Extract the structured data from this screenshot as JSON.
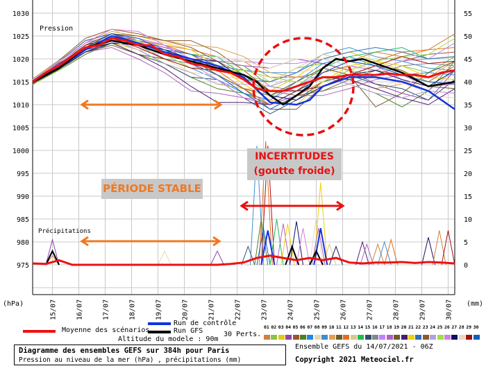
{
  "chart_data": {
    "type": "line",
    "title": "Diagramme des ensembles GEFS sur 384h pour Paris",
    "subtitle": "Pression au niveau de la mer (hPa) , précipitations (mm)",
    "run_info": "Ensemble GEFS du 14/07/2021 - 06Z",
    "copyright": "Copyright 2021 Meteociel.fr",
    "altitude": "Altitude du modele : 90m",
    "left_axis_unit": "(hPa)",
    "right_axis_unit": "(mm)",
    "pressure_label": "Pression",
    "precip_label": "Précipitations",
    "ylim_hpa": [
      975,
      1030
    ],
    "ylim_mm": [
      0,
      55
    ],
    "left_ticks": [
      "1030",
      "1025",
      "1020",
      "1015",
      "1010",
      "1005",
      "1000",
      "995",
      "990",
      "985",
      "980",
      "975"
    ],
    "right_ticks": [
      "55",
      "50",
      "45",
      "40",
      "35",
      "30",
      "25",
      "20",
      "15",
      "10",
      "5",
      "0"
    ],
    "x_hours_range": [
      0,
      384
    ],
    "date_ticks": [
      "15/07",
      "16/07",
      "17/07",
      "18/07",
      "19/07",
      "20/07",
      "21/07",
      "22/07",
      "23/07",
      "24/07",
      "25/07",
      "26/07",
      "27/07",
      "28/07",
      "29/07",
      "30/07"
    ],
    "legend": {
      "mean": "Moyenne des scénarios",
      "control": "Run de contrôle",
      "gfs": "Run GFS",
      "perts": "30 Perts.",
      "member_ids": [
        "01",
        "02",
        "03",
        "04",
        "05",
        "06",
        "07",
        "08",
        "09",
        "10",
        "11",
        "12",
        "13",
        "14",
        "15",
        "16",
        "17",
        "18",
        "19",
        "20",
        "21",
        "22",
        "23",
        "24",
        "25",
        "26",
        "27",
        "28",
        "29",
        "30"
      ]
    },
    "colors": {
      "mean": "#ee1111",
      "control": "#1133dd",
      "gfs": "#000000",
      "members": [
        "#d2803a",
        "#8bc34a",
        "#e6c619",
        "#8e44ad",
        "#a0522d",
        "#4f7f1f",
        "#1e88e5",
        "#e8d7b0",
        "#3f8fd0",
        "#e0a050",
        "#6b5b2b",
        "#e86c1a",
        "#d8c890",
        "#22bb55",
        "#2f4f6f",
        "#808890",
        "#c080ff",
        "#b060c0",
        "#6e5a2a",
        "#4b1d6e",
        "#f0d000",
        "#2e6fbf",
        "#8b5a2b",
        "#b0a0e0",
        "#a0e040",
        "#d080e0",
        "#101060",
        "#e8d8c0",
        "#a01010",
        "#1060c0"
      ]
    },
    "mean_hours_step": 12,
    "mean_pressure": [
      1015,
      1017,
      1018.5,
      1020.5,
      1022.5,
      1023,
      1024.5,
      1024,
      1023,
      1023,
      1021,
      1020.5,
      1019,
      1018.5,
      1017.5,
      1017,
      1015.5,
      1013.5,
      1013,
      1013,
      1014,
      1015,
      1016,
      1016,
      1016.5,
      1016.5,
      1016.5,
      1016.8,
      1016.5,
      1016.5,
      1016,
      1017,
      1017.5
    ],
    "mean_precip": [
      0.3,
      0.2,
      1,
      0,
      0,
      0,
      0,
      0,
      0,
      0,
      0,
      0,
      0,
      0,
      0,
      0.2,
      0.5,
      1.5,
      2,
      1.5,
      1,
      1.5,
      1,
      1.5,
      0.5,
      0.3,
      0.5,
      0.5,
      0.6,
      0.4,
      0.6,
      0.5,
      0.3
    ],
    "control_pressure": [
      [
        0,
        1015
      ],
      [
        24,
        1018
      ],
      [
        48,
        1022
      ],
      [
        72,
        1025
      ],
      [
        96,
        1023.5
      ],
      [
        120,
        1021.5
      ],
      [
        144,
        1020
      ],
      [
        168,
        1018.5
      ],
      [
        192,
        1016
      ],
      [
        216,
        1010.5
      ],
      [
        240,
        1010
      ],
      [
        252,
        1011
      ],
      [
        264,
        1014
      ],
      [
        288,
        1016
      ],
      [
        312,
        1016
      ],
      [
        336,
        1015
      ],
      [
        360,
        1013
      ],
      [
        384,
        1009
      ]
    ],
    "gfs_pressure": [
      [
        0,
        1015
      ],
      [
        24,
        1018
      ],
      [
        48,
        1022.5
      ],
      [
        72,
        1024
      ],
      [
        96,
        1023
      ],
      [
        120,
        1021
      ],
      [
        144,
        1019.5
      ],
      [
        168,
        1018
      ],
      [
        192,
        1016.5
      ],
      [
        204,
        1015
      ],
      [
        216,
        1012
      ],
      [
        228,
        1010
      ],
      [
        240,
        1012
      ],
      [
        252,
        1014
      ],
      [
        264,
        1018
      ],
      [
        276,
        1020
      ],
      [
        288,
        1019.5
      ],
      [
        300,
        1020
      ],
      [
        312,
        1019
      ],
      [
        336,
        1017
      ],
      [
        360,
        1014
      ],
      [
        384,
        1015
      ]
    ],
    "control_precip": [
      [
        18,
        3
      ],
      [
        214,
        7.5
      ],
      [
        262,
        8
      ]
    ],
    "gfs_precip": [
      [
        18,
        3
      ],
      [
        236,
        4
      ],
      [
        258,
        3
      ]
    ],
    "members_hours_step": 24,
    "member_pressure_offsets": [
      [
        0.5,
        1,
        1.5,
        1,
        1.5,
        2,
        3,
        3,
        4,
        3,
        2,
        1,
        3,
        5,
        4,
        6,
        8
      ],
      [
        -0.5,
        0,
        1,
        0.5,
        0,
        -1,
        -1,
        0,
        1,
        2,
        4,
        3,
        1,
        0,
        2,
        1,
        3
      ],
      [
        0,
        0.5,
        -0.5,
        -1,
        -1,
        -2,
        -2,
        -3,
        -2,
        0,
        2,
        4,
        5,
        3,
        1,
        -1,
        -3
      ],
      [
        0.3,
        -0.5,
        0,
        1,
        1,
        1.5,
        2,
        2,
        3,
        5,
        6,
        3,
        1,
        -2,
        -4,
        -5,
        0
      ],
      [
        0.6,
        1.2,
        2,
        2,
        2.5,
        3,
        3.5,
        2,
        1,
        0,
        -1,
        1,
        2,
        1,
        3,
        5,
        4
      ],
      [
        -0.3,
        -1,
        -1.5,
        -1,
        -2,
        -2,
        -3,
        -4,
        -3,
        -3,
        -1,
        0,
        -2,
        -4,
        -7,
        -3,
        2
      ],
      [
        0.2,
        0,
        0.5,
        0,
        1,
        0,
        -1,
        -2,
        -3,
        -2,
        1,
        3,
        4,
        2,
        0,
        1,
        -1
      ],
      [
        -0.6,
        -1,
        -1,
        0.5,
        0,
        -1,
        -2,
        -1,
        0,
        1,
        3,
        2,
        -1,
        -3,
        -1,
        -4,
        -6
      ],
      [
        0.4,
        0.8,
        0,
        -0.5,
        -1,
        0,
        1,
        1,
        2,
        4,
        3,
        5,
        6,
        4,
        3,
        2,
        0
      ],
      [
        0,
        0.3,
        1,
        1.5,
        2,
        3,
        4,
        5,
        5,
        4,
        2,
        0,
        -1,
        -3,
        -2,
        0,
        2
      ],
      [
        -0.4,
        -0.8,
        -1,
        -1.5,
        -2,
        -1,
        0,
        -1,
        -2,
        -4,
        -5,
        -2,
        0,
        2,
        1,
        -2,
        -4
      ],
      [
        0.7,
        0.5,
        0,
        0.5,
        1,
        2,
        2,
        0,
        -2,
        -3,
        -2,
        -1,
        1,
        3,
        5,
        6,
        5
      ],
      [
        -0.2,
        0.6,
        1,
        2,
        1,
        0,
        -1,
        1,
        3,
        2,
        4,
        5,
        3,
        1,
        -1,
        -3,
        -5
      ],
      [
        0.1,
        -0.3,
        -0.5,
        0,
        0.5,
        1,
        2,
        3,
        1,
        -1,
        0,
        2,
        4,
        5,
        6,
        4,
        3
      ],
      [
        -0.7,
        -0.5,
        -1,
        -0.5,
        -1,
        -2,
        -3,
        -2,
        -4,
        -5,
        -3,
        -1,
        0,
        -2,
        -3,
        -5,
        -2
      ],
      [
        0.3,
        0,
        0.5,
        1,
        0,
        -1,
        0,
        2,
        3,
        1,
        -1,
        -3,
        -2,
        0,
        2,
        3,
        1
      ],
      [
        -0.1,
        0.4,
        1,
        0.5,
        1.5,
        2,
        1,
        2,
        4,
        6,
        5,
        4,
        2,
        1,
        3,
        4,
        6
      ],
      [
        0.5,
        -0.2,
        -1,
        -2,
        -3,
        -4,
        -6,
        -5,
        -4,
        -3,
        -2,
        -4,
        -3,
        -1,
        0,
        -2,
        -3
      ],
      [
        -0.5,
        0.2,
        0.5,
        1,
        0,
        1,
        1,
        -1,
        -2,
        -1,
        1,
        2,
        0,
        -7,
        -4,
        1,
        2
      ],
      [
        0.2,
        0.5,
        -0.5,
        -1,
        -2,
        -3,
        -5,
        -7,
        -5,
        -3,
        -1,
        0,
        -1,
        -3,
        -5,
        -6,
        -4
      ],
      [
        0,
        -0.6,
        0,
        1,
        2,
        2.5,
        3,
        1,
        -1,
        -2,
        -4,
        -1,
        2,
        3,
        2,
        0,
        -2
      ],
      [
        0.6,
        0.9,
        1.5,
        1,
        0.5,
        1,
        2,
        1,
        0,
        2,
        3,
        4,
        5,
        6,
        5,
        4,
        3
      ],
      [
        -0.3,
        0,
        0.5,
        1,
        2,
        3,
        5,
        4,
        2,
        0,
        -2,
        -3,
        -1,
        1,
        0,
        -1,
        1
      ],
      [
        0.4,
        -0.4,
        -1,
        0,
        -1,
        -2,
        -2,
        -3,
        -1,
        1,
        2,
        0,
        -2,
        -4,
        -5,
        -3,
        0
      ],
      [
        -0.6,
        -1,
        -0.5,
        0,
        1,
        0,
        -1,
        0,
        2,
        3,
        1,
        -1,
        1,
        3,
        4,
        5,
        7
      ],
      [
        0.1,
        0.7,
        1,
        2,
        3,
        2,
        0,
        -2,
        -4,
        -2,
        0,
        1,
        3,
        2,
        -1,
        -3,
        -5
      ],
      [
        -0.2,
        -0.7,
        -1,
        -1,
        0,
        1,
        1,
        2,
        0,
        -1,
        -3,
        -2,
        0,
        1,
        -1,
        -2,
        0
      ],
      [
        0.5,
        1,
        0,
        -0.5,
        -1,
        0,
        1,
        3,
        4,
        5,
        6,
        4,
        2,
        0,
        -2,
        0,
        1
      ],
      [
        -0.4,
        0.2,
        0.5,
        0,
        -0.5,
        -1,
        -1,
        0,
        1,
        0,
        -1,
        -2,
        0,
        2,
        4,
        3,
        2
      ],
      [
        0.3,
        -0.2,
        0,
        1,
        1.5,
        1,
        0,
        -1,
        -3,
        -4,
        -2,
        1,
        3,
        2,
        0,
        -1,
        -3
      ]
    ],
    "member_precip_peaks": [
      [
        4,
        18,
        5.5
      ],
      [
        27,
        18,
        3
      ],
      [
        1,
        18,
        2
      ],
      [
        8,
        120,
        3
      ],
      [
        4,
        168,
        3
      ],
      [
        15,
        196,
        4
      ],
      [
        9,
        204,
        26
      ],
      [
        6,
        208,
        10
      ],
      [
        29,
        214,
        26
      ],
      [
        12,
        212,
        27
      ],
      [
        30,
        210,
        8
      ],
      [
        14,
        222,
        10
      ],
      [
        18,
        228,
        9
      ],
      [
        21,
        232,
        9
      ],
      [
        27,
        240,
        9.5
      ],
      [
        26,
        246,
        8
      ],
      [
        28,
        258,
        10.5
      ],
      [
        21,
        262,
        18
      ],
      [
        18,
        260,
        8
      ],
      [
        30,
        262,
        8
      ],
      [
        13,
        270,
        4.5
      ],
      [
        27,
        276,
        4
      ],
      [
        20,
        300,
        5
      ],
      [
        18,
        304,
        4.5
      ],
      [
        1,
        314,
        4.5
      ],
      [
        9,
        320,
        5
      ],
      [
        12,
        326,
        5.5
      ],
      [
        27,
        360,
        6
      ],
      [
        1,
        370,
        7.5
      ],
      [
        29,
        378,
        7.5
      ]
    ],
    "annotations": {
      "stable_label": "PÉRIODE STABLE",
      "uncertain_label_1": "INCERTITUDES",
      "uncertain_label_2": "(goutte froide)",
      "stable_color": "#f07820",
      "uncertain_color": "#e81010"
    }
  }
}
